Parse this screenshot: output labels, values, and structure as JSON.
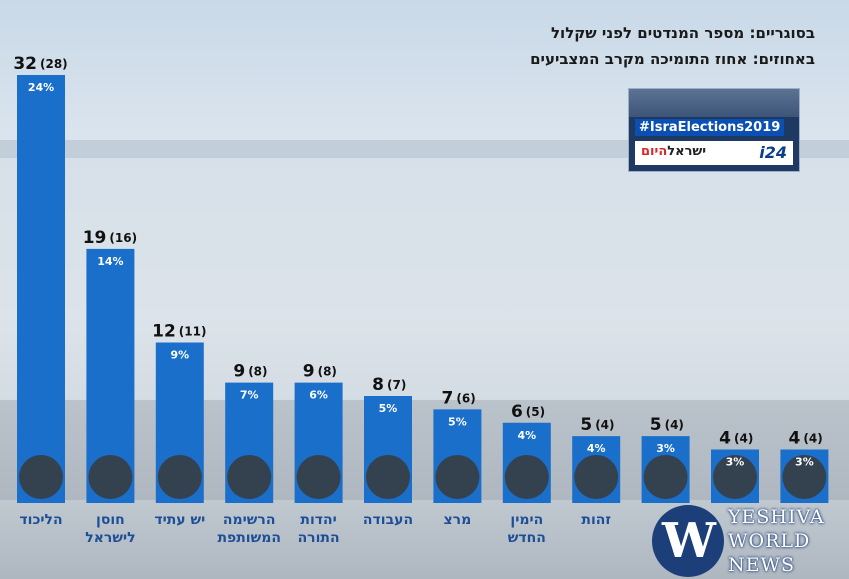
{
  "legend": {
    "line1": "בסוגריים: מספר המנדטים לפני שקלול",
    "line2": "באחוזים: אחוז התומיכה מקרב המצביעים"
  },
  "badge": {
    "hashtag": "#IsraElections2019",
    "israel_hayom": "ישראל",
    "hayom": "היום",
    "i24": "i24"
  },
  "watermark": {
    "line1": "YESHIVA",
    "line2": "WORLD",
    "line3": "NEWS",
    "letter": "W"
  },
  "chart_data": {
    "type": "bar",
    "bar_color": "#1a6fcb",
    "categories": [
      "הליכוד",
      "חוסן לישראל",
      "יש עתיד",
      "הרשימה המשותפת",
      "יהדות התורה",
      "העבודה",
      "מרצ",
      "הימין החדש",
      "זהות",
      "",
      "",
      ""
    ],
    "category_lines": [
      [
        "הליכוד"
      ],
      [
        "חוסן",
        "לישראל"
      ],
      [
        "יש עתיד"
      ],
      [
        "הרשימה",
        "המשותפת"
      ],
      [
        "יהדות",
        "התורה"
      ],
      [
        "העבודה"
      ],
      [
        "מרצ"
      ],
      [
        "הימין",
        "החדש"
      ],
      [
        "זהות"
      ],
      [],
      [],
      []
    ],
    "values": [
      32,
      19,
      12,
      9,
      9,
      8,
      7,
      6,
      5,
      5,
      4,
      4
    ],
    "raw_values": [
      "(28)",
      "(16)",
      "(11)",
      "(8)",
      "(8)",
      "(7)",
      "(6)",
      "(5)",
      "(4)",
      "(4)",
      "(4)",
      "(4)"
    ],
    "percent_labels": [
      "24%",
      "14%",
      "9%",
      "7%",
      "6%",
      "5%",
      "5%",
      "4%",
      "4%",
      "3%",
      "3%",
      "3%"
    ],
    "ylim": [
      0,
      32
    ]
  }
}
